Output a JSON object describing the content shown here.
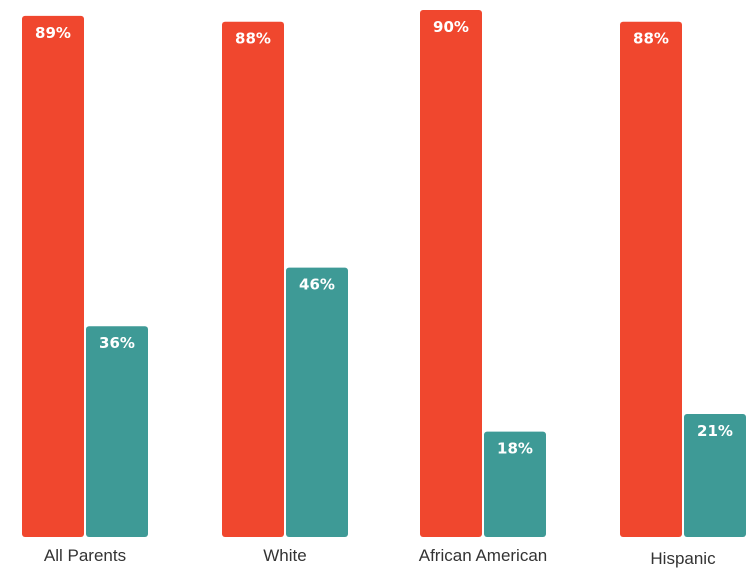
{
  "chart_data": {
    "type": "bar",
    "categories": [
      "All Parents",
      "White",
      "African American",
      "Hispanic"
    ],
    "series": [
      {
        "values": [
          89,
          88,
          90,
          88
        ],
        "labels": [
          "89%",
          "88%",
          "90%",
          "88%"
        ],
        "color": "#f0472e"
      },
      {
        "values": [
          36,
          46,
          18,
          21
        ],
        "labels": [
          "36%",
          "46%",
          "18%",
          "21%"
        ],
        "color": "#3e9a96"
      }
    ],
    "title": "",
    "xlabel": "",
    "ylabel": "",
    "ylim": [
      0,
      90
    ],
    "grid": false,
    "legend": "none"
  }
}
